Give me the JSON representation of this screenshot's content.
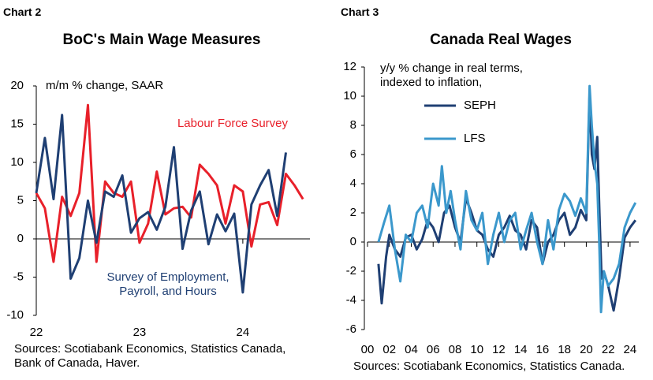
{
  "chart_data": [
    {
      "type": "line",
      "chart_label": "Chart 2",
      "title": "BoC's Main Wage Measures",
      "y_label": "m/m % change, SAAR",
      "source": "Sources: Scotiabank Economics, Statistics Canada, Bank of Canada, Haver.",
      "x": [
        2022,
        2022.083,
        2022.167,
        2022.25,
        2022.333,
        2022.417,
        2022.5,
        2022.583,
        2022.667,
        2022.75,
        2022.833,
        2022.917,
        2023,
        2023.083,
        2023.167,
        2023.25,
        2023.333,
        2023.417,
        2023.5,
        2023.583,
        2023.667,
        2023.75,
        2023.833,
        2023.917,
        2024,
        2024.083,
        2024.167,
        2024.25,
        2024.333,
        2024.417,
        2024.5,
        2024.583
      ],
      "series": [
        {
          "name": "Labour Force Survey",
          "color": "#e8202a",
          "values": [
            6,
            4,
            -3,
            5.5,
            3,
            6,
            17.5,
            -3,
            7.5,
            6,
            5.5,
            7.5,
            -0.5,
            2,
            8.8,
            3.2,
            4,
            4.2,
            2.8,
            9.7,
            8.5,
            7,
            2,
            7,
            6.2,
            -1,
            4.5,
            4.8,
            1.8,
            8.5,
            7,
            5.2
          ]
        },
        {
          "name": "Survey of Employment, Payroll, and Hours",
          "color": "#1f3f73",
          "values": [
            6,
            13.2,
            5.2,
            16.2,
            -5.2,
            -2.5,
            5,
            -0.5,
            6.2,
            5.5,
            8.3,
            0.8,
            2.7,
            3.5,
            1.2,
            4.2,
            12,
            -1.3,
            3.7,
            6.2,
            -0.7,
            3.2,
            1,
            3.3,
            -7,
            4.5,
            7,
            9,
            3,
            11.3,
            null,
            null
          ]
        }
      ],
      "xlim": [
        2022,
        2024.65
      ],
      "xticks": [
        {
          "value": 2022,
          "label": "22"
        },
        {
          "value": 2023,
          "label": "23"
        },
        {
          "value": 2024,
          "label": "24"
        }
      ],
      "ylim": [
        -10,
        20
      ],
      "yticks": [
        -10,
        -5,
        0,
        5,
        10,
        15,
        20
      ]
    },
    {
      "type": "line",
      "chart_label": "Chart 3",
      "title": "Canada Real Wages",
      "y_label": "y/y % change in real terms, indexed to inflation,",
      "source": "Sources: Scotiabank Economics, Statistics Canada.",
      "series": [
        {
          "name": "SEPH",
          "color": "#1f3f73",
          "x": [
            2001,
            2001.3,
            2001.7,
            2002,
            2002.5,
            2003,
            2003.5,
            2004,
            2004.5,
            2005,
            2005.5,
            2006,
            2006.5,
            2007,
            2007.5,
            2008,
            2008.5,
            2009,
            2009.5,
            2010,
            2010.5,
            2011,
            2011.5,
            2012,
            2012.5,
            2013,
            2013.5,
            2014,
            2014.5,
            2015,
            2015.5,
            2016,
            2016.5,
            2017,
            2017.5,
            2018,
            2018.5,
            2019,
            2019.5,
            2020,
            2020.3,
            2020.5,
            2020.75,
            2021,
            2021.2,
            2021.4,
            2021.6,
            2022,
            2022.5,
            2023,
            2023.5,
            2024,
            2024.5
          ],
          "values": [
            -1.5,
            -4.2,
            -1,
            0.5,
            -0.5,
            -1,
            0.3,
            0.5,
            -0.5,
            0.2,
            1.5,
            1,
            0,
            2,
            2.5,
            1,
            0,
            3,
            2,
            0.8,
            0.5,
            -0.5,
            -1,
            0.5,
            1,
            1.8,
            0.8,
            0.5,
            -0.5,
            1.5,
            1,
            -1.5,
            0,
            0.5,
            1.5,
            2,
            0.5,
            1,
            2.2,
            1.5,
            10.2,
            6,
            5,
            7.2,
            2,
            -2.5,
            -2,
            -3,
            -4.7,
            -2.5,
            0.3,
            1,
            1.5
          ]
        },
        {
          "name": "LFS",
          "color": "#3b98cc",
          "x": [
            2001,
            2001.5,
            2002,
            2002.5,
            2003,
            2003.5,
            2004,
            2004.5,
            2005,
            2005.5,
            2006,
            2006.5,
            2006.8,
            2007.2,
            2007.6,
            2008,
            2008.5,
            2009,
            2009.5,
            2010,
            2010.5,
            2011,
            2011.5,
            2012,
            2012.5,
            2013,
            2013.5,
            2014,
            2014.5,
            2015,
            2015.5,
            2016,
            2016.5,
            2017,
            2017.5,
            2018,
            2018.5,
            2019,
            2019.5,
            2020,
            2020.3,
            2020.5,
            2020.75,
            2021,
            2021.2,
            2021.35,
            2021.6,
            2022,
            2022.5,
            2023,
            2023.5,
            2024,
            2024.5
          ],
          "values": [
            0,
            1.3,
            2.5,
            -0.5,
            -2.7,
            0.5,
            0,
            2,
            2.5,
            1,
            4,
            2.5,
            5.2,
            2,
            3.5,
            1.5,
            -0.5,
            3.5,
            1.5,
            0.8,
            2,
            -1.5,
            0.5,
            2,
            0,
            1.5,
            2,
            -0.5,
            0.8,
            2,
            0,
            -1.5,
            1.5,
            -0.5,
            2.2,
            3.3,
            2.8,
            1.8,
            3,
            2,
            10.7,
            8,
            5.5,
            4,
            -0.5,
            -4.8,
            -2,
            -3,
            -2.5,
            -1.5,
            1,
            2,
            2.7
          ]
        }
      ],
      "xlim": [
        2000,
        2024.8
      ],
      "xticks": [
        {
          "value": 2000,
          "label": "00"
        },
        {
          "value": 2002,
          "label": "02"
        },
        {
          "value": 2004,
          "label": "04"
        },
        {
          "value": 2006,
          "label": "06"
        },
        {
          "value": 2008,
          "label": "08"
        },
        {
          "value": 2010,
          "label": "10"
        },
        {
          "value": 2012,
          "label": "12"
        },
        {
          "value": 2014,
          "label": "14"
        },
        {
          "value": 2016,
          "label": "16"
        },
        {
          "value": 2018,
          "label": "18"
        },
        {
          "value": 2020,
          "label": "20"
        },
        {
          "value": 2022,
          "label": "22"
        },
        {
          "value": 2024,
          "label": "24"
        }
      ],
      "ylim": [
        -6,
        12
      ],
      "yticks": [
        -6,
        -4,
        -2,
        0,
        2,
        4,
        6,
        8,
        10,
        12
      ]
    }
  ]
}
